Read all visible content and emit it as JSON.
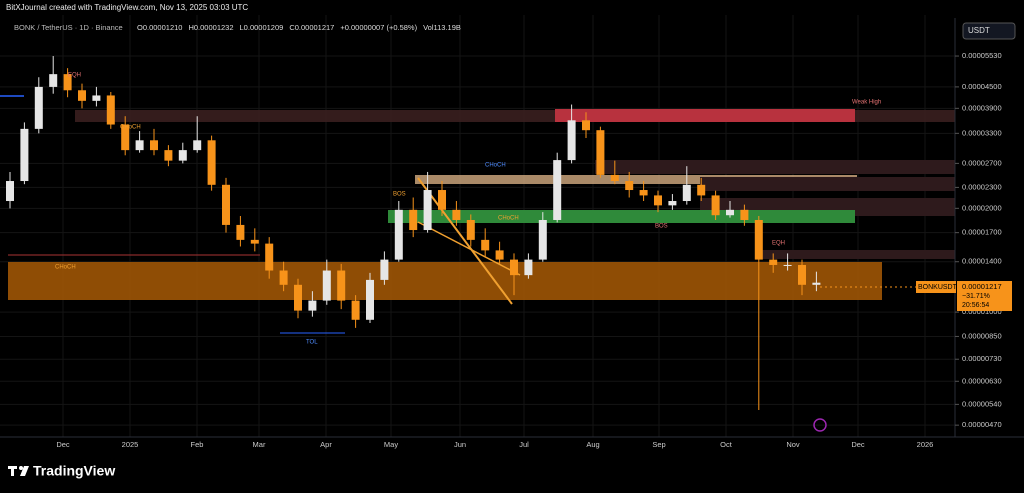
{
  "header": {
    "credit": "BitXJournal created with TradingView.com, Nov 13, 2025 03:03 UTC",
    "symbol": "BONK / TetherUS · 1D · Binance",
    "ohlc": [
      "O0.00001210",
      "H0.00001232",
      "L0.00001209",
      "C0.00001217",
      "+0.00000007 (+0.58%)",
      "Vol113.19B"
    ]
  },
  "currency_button": "USDT",
  "price_tag": {
    "ticker": "BONKUSDT",
    "price": "0.00001217",
    "change": "−31.71%",
    "countdown": "20:56:54"
  },
  "brand": "TradingView",
  "chart_data": {
    "type": "candlestick",
    "log_scale": true,
    "grid": true,
    "up_color": "#e6e6e6",
    "down_color": "#f7931a",
    "ylim": [
      4.49e-06,
      8.04e-05
    ],
    "yticks": [
      {
        "value": 5.53e-05,
        "label": "0.00005530"
      },
      {
        "value": 4.5e-05,
        "label": "0.00004500"
      },
      {
        "value": 3.9e-05,
        "label": "0.00003900"
      },
      {
        "value": 3.3e-05,
        "label": "0.00003300"
      },
      {
        "value": 2.7e-05,
        "label": "0.00002700"
      },
      {
        "value": 2.3e-05,
        "label": "0.00002300"
      },
      {
        "value": 2e-05,
        "label": "0.00002000"
      },
      {
        "value": 1.7e-05,
        "label": "0.00001700"
      },
      {
        "value": 1.4e-05,
        "label": "0.00001400"
      },
      {
        "value": 1e-05,
        "label": "0.00001000"
      },
      {
        "value": 8.5e-06,
        "label": "0.00000850"
      },
      {
        "value": 7.3e-06,
        "label": "0.00000730"
      },
      {
        "value": 6.3e-06,
        "label": "0.00000630"
      },
      {
        "value": 5.4e-06,
        "label": "0.00000540"
      },
      {
        "value": 4.7e-06,
        "label": "0.00000470"
      }
    ],
    "xtick_labels": [
      "Dec",
      "2025",
      "Feb",
      "Mar",
      "Apr",
      "May",
      "Jun",
      "Jul",
      "Aug",
      "Sep",
      "Oct",
      "Nov",
      "Dec",
      "2026"
    ],
    "annotations": [
      "CHoCH",
      "CHoCH",
      "Weak High",
      "TOL",
      "EQH",
      "EQH",
      "BOS",
      "CHoCH",
      "BOS",
      "CHoCH"
    ],
    "candles": [
      [
        2.1e-05,
        2.55e-05,
        2e-05,
        2.4e-05
      ],
      [
        2.4e-05,
        3.55e-05,
        2.35e-05,
        3.4e-05
      ],
      [
        3.4e-05,
        4.8e-05,
        3.3e-05,
        4.5e-05
      ],
      [
        4.5e-05,
        5.53e-05,
        4.3e-05,
        4.9e-05
      ],
      [
        4.9e-05,
        5.1e-05,
        4.2e-05,
        4.4e-05
      ],
      [
        4.4e-05,
        4.6e-05,
        3.9e-05,
        4.1e-05
      ],
      [
        4.1e-05,
        4.5e-05,
        3.95e-05,
        4.25e-05
      ],
      [
        4.25e-05,
        4.35e-05,
        3.4e-05,
        3.5e-05
      ],
      [
        3.5e-05,
        3.7e-05,
        2.85e-05,
        2.95e-05
      ],
      [
        2.95e-05,
        3.35e-05,
        2.9e-05,
        3.15e-05
      ],
      [
        3.15e-05,
        3.4e-05,
        2.85e-05,
        2.95e-05
      ],
      [
        2.95e-05,
        3.05e-05,
        2.65e-05,
        2.75e-05
      ],
      [
        2.75e-05,
        3.1e-05,
        2.7e-05,
        2.95e-05
      ],
      [
        2.95e-05,
        3.7e-05,
        2.9e-05,
        3.15e-05
      ],
      [
        3.15e-05,
        3.25e-05,
        2.25e-05,
        2.34e-05
      ],
      [
        2.34e-05,
        2.45e-05,
        1.7e-05,
        1.79e-05
      ],
      [
        1.79e-05,
        1.9e-05,
        1.55e-05,
        1.62e-05
      ],
      [
        1.62e-05,
        1.75e-05,
        1.5e-05,
        1.58e-05
      ],
      [
        1.58e-05,
        1.65e-05,
        1.25e-05,
        1.32e-05
      ],
      [
        1.32e-05,
        1.4e-05,
        1.15e-05,
        1.2e-05
      ],
      [
        1.2e-05,
        1.25e-05,
        9.6e-06,
        1.01e-05
      ],
      [
        1.01e-05,
        1.15e-05,
        9.7e-06,
        1.08e-05
      ],
      [
        1.08e-05,
        1.42e-05,
        1.05e-05,
        1.32e-05
      ],
      [
        1.32e-05,
        1.38e-05,
        1.02e-05,
        1.08e-05
      ],
      [
        1.08e-05,
        1.12e-05,
        9e-06,
        9.5e-06
      ],
      [
        9.5e-06,
        1.3e-05,
        9.3e-06,
        1.24e-05
      ],
      [
        1.24e-05,
        1.5e-05,
        1.2e-05,
        1.42e-05
      ],
      [
        1.42e-05,
        2.1e-05,
        1.4e-05,
        1.98e-05
      ],
      [
        1.98e-05,
        2.15e-05,
        1.65e-05,
        1.73e-05
      ],
      [
        1.73e-05,
        2.55e-05,
        1.7e-05,
        2.26e-05
      ],
      [
        2.26e-05,
        2.4e-05,
        1.9e-05,
        1.98e-05
      ],
      [
        1.98e-05,
        2.1e-05,
        1.78e-05,
        1.85e-05
      ],
      [
        1.85e-05,
        1.92e-05,
        1.55e-05,
        1.62e-05
      ],
      [
        1.62e-05,
        1.75e-05,
        1.45e-05,
        1.51e-05
      ],
      [
        1.51e-05,
        1.6e-05,
        1.38e-05,
        1.42e-05
      ],
      [
        1.42e-05,
        1.48e-05,
        1.12e-05,
        1.28e-05
      ],
      [
        1.28e-05,
        1.48e-05,
        1.25e-05,
        1.42e-05
      ],
      [
        1.42e-05,
        1.95e-05,
        1.4e-05,
        1.85e-05
      ],
      [
        1.85e-05,
        2.9e-05,
        1.82e-05,
        2.76e-05
      ],
      [
        2.76e-05,
        4e-05,
        2.7e-05,
        3.6e-05
      ],
      [
        3.6e-05,
        3.8e-05,
        3.2e-05,
        3.37e-05
      ],
      [
        3.37e-05,
        3.45e-05,
        2.45e-05,
        2.5e-05
      ],
      [
        2.5e-05,
        2.75e-05,
        2.35e-05,
        2.4e-05
      ],
      [
        2.4e-05,
        2.55e-05,
        2.15e-05,
        2.26e-05
      ],
      [
        2.26e-05,
        2.4e-05,
        2.1e-05,
        2.18e-05
      ],
      [
        2.18e-05,
        2.25e-05,
        1.95e-05,
        2.04e-05
      ],
      [
        2.04e-05,
        2.2e-05,
        1.98e-05,
        2.1e-05
      ],
      [
        2.1e-05,
        2.65e-05,
        2.05e-05,
        2.34e-05
      ],
      [
        2.34e-05,
        2.45e-05,
        2.1e-05,
        2.18e-05
      ],
      [
        2.18e-05,
        2.25e-05,
        1.85e-05,
        1.91e-05
      ],
      [
        1.91e-05,
        2.1e-05,
        1.88e-05,
        1.98e-05
      ],
      [
        1.98e-05,
        2.05e-05,
        1.78e-05,
        1.85e-05
      ],
      [
        1.85e-05,
        1.9e-05,
        5.2e-06,
        1.42e-05
      ],
      [
        1.42e-05,
        1.48e-05,
        1.3e-05,
        1.37e-05
      ],
      [
        1.37e-05,
        1.48e-05,
        1.32e-05,
        1.37e-05
      ],
      [
        1.37e-05,
        1.42e-05,
        1.12e-05,
        1.2e-05
      ],
      [
        1.2e-05,
        1.31e-05,
        1.15e-05,
        1.217e-05
      ]
    ]
  }
}
